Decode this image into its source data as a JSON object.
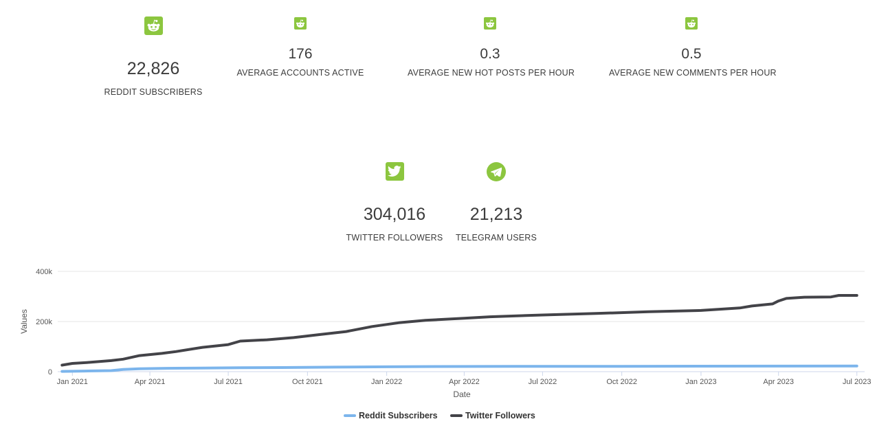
{
  "stats": {
    "reddit_subscribers": {
      "value": "22,826",
      "label": "REDDIT SUBSCRIBERS",
      "icon": "reddit-icon"
    },
    "accounts_active": {
      "value": "176",
      "label": "AVERAGE ACCOUNTS ACTIVE",
      "icon": "reddit-icon"
    },
    "hot_posts": {
      "value": "0.3",
      "label": "AVERAGE NEW HOT POSTS PER HOUR",
      "icon": "reddit-icon"
    },
    "comments": {
      "value": "0.5",
      "label": "AVERAGE NEW COMMENTS PER HOUR",
      "icon": "reddit-icon"
    },
    "twitter_followers": {
      "value": "304,016",
      "label": "TWITTER FOLLOWERS",
      "icon": "twitter-icon"
    },
    "telegram_users": {
      "value": "21,213",
      "label": "TELEGRAM USERS",
      "icon": "telegram-icon"
    }
  },
  "colors": {
    "accent": "#8cc63f",
    "reddit_series": "#7cb5ec",
    "twitter_series": "#434348"
  },
  "chart_data": {
    "type": "line",
    "xlabel": "Date",
    "ylabel": "Values",
    "ylim": [
      0,
      400000
    ],
    "xlim": [
      "2020-12-15",
      "2023-07-10"
    ],
    "yticks": [
      0,
      200000,
      400000
    ],
    "ytick_labels": [
      "0",
      "200k",
      "400k"
    ],
    "xticks": [
      "2021-01-01",
      "2021-04-01",
      "2021-07-01",
      "2021-10-01",
      "2022-01-01",
      "2022-04-01",
      "2022-07-01",
      "2022-10-01",
      "2023-01-01",
      "2023-04-01",
      "2023-07-01"
    ],
    "xtick_labels": [
      "Jan 2021",
      "Apr 2021",
      "Jul 2021",
      "Oct 2021",
      "Jan 2022",
      "Apr 2022",
      "Jul 2022",
      "Oct 2022",
      "Jan 2023",
      "Apr 2023",
      "Jul 2023"
    ],
    "grid": true,
    "legend": "bottom-center",
    "series": [
      {
        "name": "Reddit Subscribers",
        "color": "#7cb5ec",
        "points": [
          [
            "2020-12-20",
            1000
          ],
          [
            "2021-01-15",
            2500
          ],
          [
            "2021-02-15",
            4000
          ],
          [
            "2021-03-01",
            9000
          ],
          [
            "2021-03-20",
            11500
          ],
          [
            "2021-04-20",
            13500
          ],
          [
            "2021-06-01",
            14500
          ],
          [
            "2021-07-15",
            15500
          ],
          [
            "2021-09-01",
            16500
          ],
          [
            "2021-11-01",
            18000
          ],
          [
            "2022-01-01",
            19500
          ],
          [
            "2022-03-01",
            20500
          ],
          [
            "2022-06-01",
            21000
          ],
          [
            "2022-10-01",
            21500
          ],
          [
            "2023-01-01",
            22000
          ],
          [
            "2023-04-01",
            22300
          ],
          [
            "2023-07-01",
            22826
          ]
        ]
      },
      {
        "name": "Twitter Followers",
        "color": "#434348",
        "points": [
          [
            "2020-12-20",
            26000
          ],
          [
            "2021-01-01",
            33000
          ],
          [
            "2021-01-20",
            37000
          ],
          [
            "2021-02-15",
            44000
          ],
          [
            "2021-03-01",
            50000
          ],
          [
            "2021-03-20",
            64000
          ],
          [
            "2021-04-15",
            73000
          ],
          [
            "2021-05-01",
            80000
          ],
          [
            "2021-06-01",
            97000
          ],
          [
            "2021-07-01",
            108000
          ],
          [
            "2021-07-15",
            122000
          ],
          [
            "2021-08-15",
            127000
          ],
          [
            "2021-09-15",
            136000
          ],
          [
            "2021-10-15",
            148000
          ],
          [
            "2021-11-15",
            160000
          ],
          [
            "2021-12-15",
            180000
          ],
          [
            "2022-01-15",
            195000
          ],
          [
            "2022-02-15",
            205000
          ],
          [
            "2022-04-01",
            213000
          ],
          [
            "2022-05-01",
            219000
          ],
          [
            "2022-07-01",
            226000
          ],
          [
            "2022-09-01",
            232000
          ],
          [
            "2022-11-01",
            239000
          ],
          [
            "2023-01-01",
            244000
          ],
          [
            "2023-02-15",
            254000
          ],
          [
            "2023-03-01",
            262000
          ],
          [
            "2023-03-25",
            270000
          ],
          [
            "2023-04-01",
            282000
          ],
          [
            "2023-04-10",
            292000
          ],
          [
            "2023-05-01",
            297000
          ],
          [
            "2023-06-01",
            298000
          ],
          [
            "2023-06-10",
            304000
          ],
          [
            "2023-07-01",
            304016
          ]
        ]
      }
    ]
  }
}
